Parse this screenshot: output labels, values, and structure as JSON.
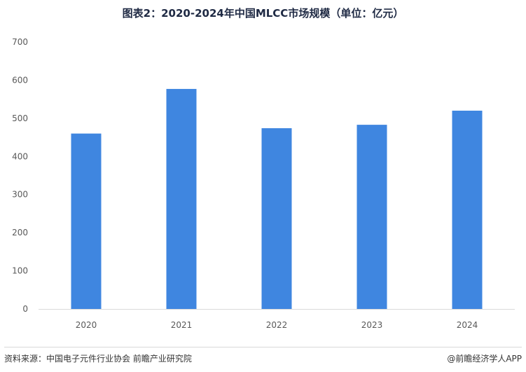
{
  "title": "图表2：2020-2024年中国MLCC市场规模（单位：亿元）",
  "source": "资料来源：中国电子元件行业协会 前瞻产业研究院",
  "credit": "@前瞻经济学人APP",
  "colors": {
    "bar": "#3f86e0",
    "axis": "#d9d9d9"
  },
  "chart_data": {
    "type": "bar",
    "title": "图表2：2020-2024年中国MLCC市场规模（单位：亿元）",
    "categories": [
      "2020",
      "2021",
      "2022",
      "2023",
      "2024"
    ],
    "values": [
      460,
      577,
      474,
      483,
      520
    ],
    "ylim": [
      0,
      700
    ],
    "yticks": [
      0,
      100,
      200,
      300,
      400,
      500,
      600,
      700
    ],
    "xlabel": "",
    "ylabel": "",
    "grid": false,
    "legend": "none"
  }
}
